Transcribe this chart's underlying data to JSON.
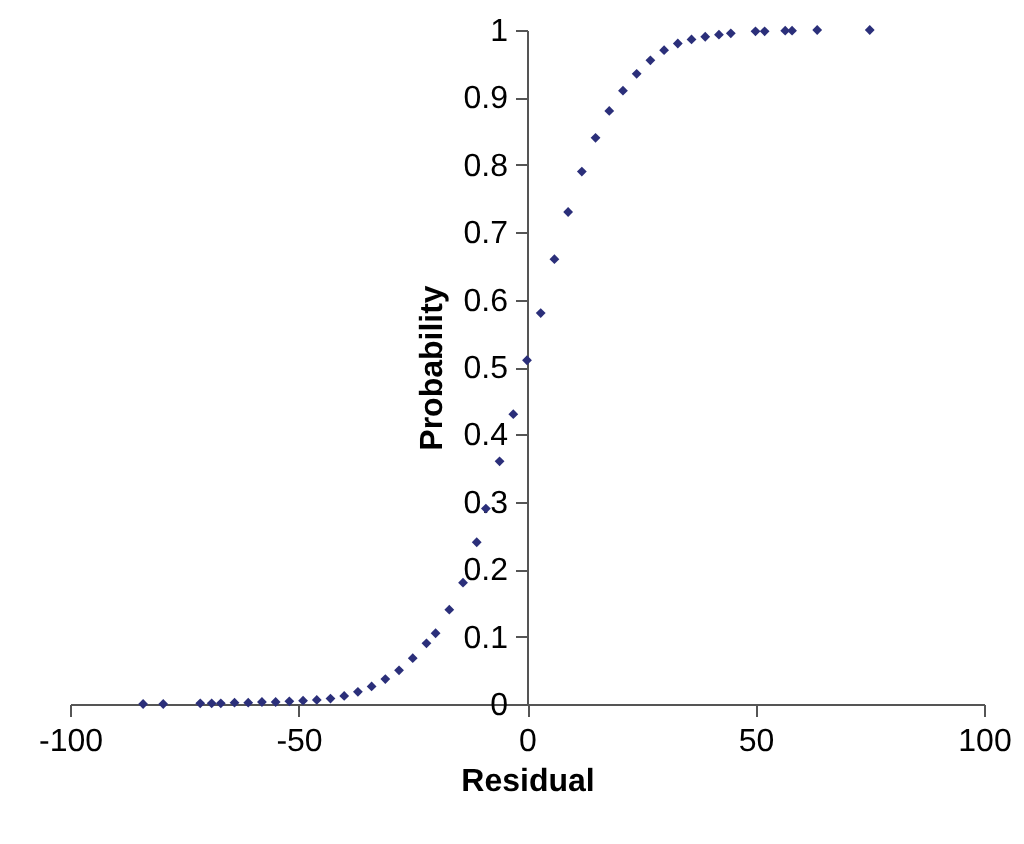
{
  "chart_data": {
    "type": "scatter",
    "xlabel": "Residual",
    "ylabel": "Probability",
    "x": [
      -84,
      -79.6,
      -71.5,
      -69,
      -67,
      -64,
      -61,
      -58,
      -55,
      -52,
      -49,
      -46,
      -43,
      -40,
      -37,
      -34,
      -31,
      -28,
      -25,
      -22,
      -20,
      -17,
      -14,
      -11,
      -9,
      -6,
      -3,
      0,
      3,
      6,
      9,
      12,
      15,
      18,
      21,
      24,
      27,
      30,
      33,
      36,
      39,
      42,
      44.6,
      50,
      52,
      56.5,
      58,
      63.5,
      75
    ],
    "series": [
      {
        "color": "#2b2f7a",
        "values": [
          0,
          0,
          0.001,
          0.001,
          0.001,
          0.002,
          0.002,
          0.003,
          0.003,
          0.004,
          0.005,
          0.006,
          0.008,
          0.012,
          0.018,
          0.026,
          0.037,
          0.05,
          0.068,
          0.09,
          0.105,
          0.14,
          0.18,
          0.24,
          0.29,
          0.36,
          0.43,
          0.51,
          0.58,
          0.66,
          0.73,
          0.79,
          0.84,
          0.88,
          0.91,
          0.935,
          0.955,
          0.97,
          0.98,
          0.986,
          0.99,
          0.993,
          0.995,
          0.998,
          0.998,
          0.999,
          0.999,
          1,
          1
        ]
      }
    ],
    "xlim": [
      -100,
      100
    ],
    "xticks": [
      -100,
      -50,
      0,
      50,
      100
    ],
    "ylim": [
      0,
      1
    ],
    "yticks": [
      0,
      0.1,
      0.2,
      0.3,
      0.4,
      0.5,
      0.6,
      0.7,
      0.8,
      0.9,
      1
    ],
    "marker": "diamond",
    "grid": false
  }
}
